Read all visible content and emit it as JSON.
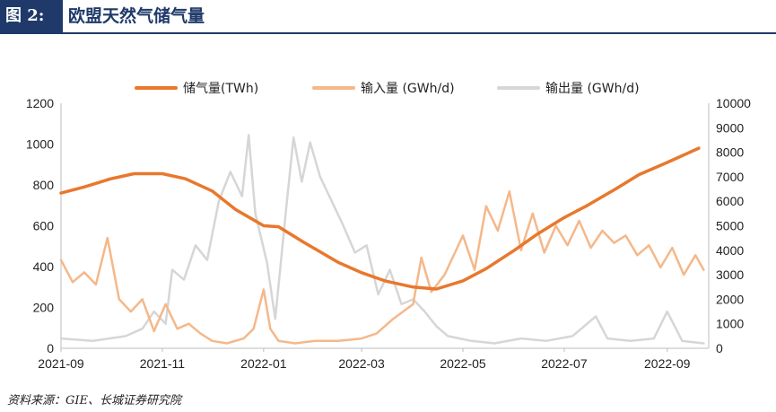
{
  "figure": {
    "label": "图 2:",
    "title": "欧盟天然气储气量",
    "source": "资料来源：GIE、长城证券研究院"
  },
  "colors": {
    "header_bg": "#1f3a6a",
    "storage": "#e8782d",
    "injection": "#f4b88a",
    "withdrawal": "#d6d6d6"
  },
  "chart_data": {
    "type": "line",
    "legend_position": "top",
    "grid": false,
    "x_ticks": [
      "2021-09",
      "2021-11",
      "2022-01",
      "2022-03",
      "2022-05",
      "2022-07",
      "2022-09"
    ],
    "y_left": {
      "ylim": [
        0,
        1200
      ],
      "ticks": [
        0,
        200,
        400,
        600,
        800,
        1000,
        1200
      ]
    },
    "y_right": {
      "ylim": [
        0,
        10000
      ],
      "ticks": [
        0,
        1000,
        2000,
        3000,
        4000,
        5000,
        6000,
        7000,
        8000,
        9000,
        10000
      ]
    },
    "series": [
      {
        "name": "储气量(TWh)",
        "axis": "left",
        "color": "#e8782d",
        "points": [
          [
            "2021-09-01",
            760
          ],
          [
            "2021-09-15",
            790
          ],
          [
            "2021-10-01",
            830
          ],
          [
            "2021-10-15",
            855
          ],
          [
            "2021-11-01",
            855
          ],
          [
            "2021-11-15",
            830
          ],
          [
            "2021-12-01",
            770
          ],
          [
            "2021-12-15",
            680
          ],
          [
            "2022-01-01",
            600
          ],
          [
            "2022-01-10",
            595
          ],
          [
            "2022-01-25",
            520
          ],
          [
            "2022-02-15",
            420
          ],
          [
            "2022-03-01",
            370
          ],
          [
            "2022-03-15",
            330
          ],
          [
            "2022-04-01",
            300
          ],
          [
            "2022-04-15",
            290
          ],
          [
            "2022-05-01",
            330
          ],
          [
            "2022-05-15",
            390
          ],
          [
            "2022-06-01",
            480
          ],
          [
            "2022-06-15",
            560
          ],
          [
            "2022-07-01",
            640
          ],
          [
            "2022-07-15",
            700
          ],
          [
            "2022-08-01",
            780
          ],
          [
            "2022-08-15",
            850
          ],
          [
            "2022-09-01",
            910
          ],
          [
            "2022-09-20",
            980
          ]
        ]
      },
      {
        "name": "输入量 (GWh/d)",
        "axis": "right",
        "color": "#f4b88a",
        "points": [
          [
            "2021-09-01",
            3600
          ],
          [
            "2021-09-08",
            2700
          ],
          [
            "2021-09-15",
            3100
          ],
          [
            "2021-09-22",
            2600
          ],
          [
            "2021-09-29",
            4500
          ],
          [
            "2021-10-06",
            2000
          ],
          [
            "2021-10-13",
            1500
          ],
          [
            "2021-10-20",
            2000
          ],
          [
            "2021-10-27",
            700
          ],
          [
            "2021-11-03",
            1800
          ],
          [
            "2021-11-10",
            800
          ],
          [
            "2021-11-17",
            1000
          ],
          [
            "2021-11-24",
            600
          ],
          [
            "2021-12-01",
            300
          ],
          [
            "2021-12-10",
            200
          ],
          [
            "2021-12-20",
            400
          ],
          [
            "2021-12-26",
            800
          ],
          [
            "2022-01-01",
            2400
          ],
          [
            "2022-01-05",
            800
          ],
          [
            "2022-01-10",
            300
          ],
          [
            "2022-01-20",
            200
          ],
          [
            "2022-02-01",
            300
          ],
          [
            "2022-02-15",
            300
          ],
          [
            "2022-03-01",
            400
          ],
          [
            "2022-03-10",
            600
          ],
          [
            "2022-03-20",
            1200
          ],
          [
            "2022-04-01",
            1800
          ],
          [
            "2022-04-06",
            3700
          ],
          [
            "2022-04-12",
            2300
          ],
          [
            "2022-04-20",
            3000
          ],
          [
            "2022-05-01",
            4600
          ],
          [
            "2022-05-08",
            3200
          ],
          [
            "2022-05-15",
            5800
          ],
          [
            "2022-05-22",
            4800
          ],
          [
            "2022-05-29",
            6400
          ],
          [
            "2022-06-05",
            4000
          ],
          [
            "2022-06-12",
            5500
          ],
          [
            "2022-06-19",
            3900
          ],
          [
            "2022-06-26",
            5000
          ],
          [
            "2022-07-03",
            4200
          ],
          [
            "2022-07-10",
            5200
          ],
          [
            "2022-07-17",
            4100
          ],
          [
            "2022-07-24",
            4800
          ],
          [
            "2022-07-31",
            4300
          ],
          [
            "2022-08-07",
            4600
          ],
          [
            "2022-08-14",
            3800
          ],
          [
            "2022-08-21",
            4200
          ],
          [
            "2022-08-28",
            3300
          ],
          [
            "2022-09-04",
            4100
          ],
          [
            "2022-09-11",
            3000
          ],
          [
            "2022-09-18",
            3800
          ],
          [
            "2022-09-23",
            3200
          ]
        ]
      },
      {
        "name": "输出量 (GWh/d)",
        "axis": "right",
        "color": "#d6d6d6",
        "points": [
          [
            "2021-09-01",
            400
          ],
          [
            "2021-09-20",
            300
          ],
          [
            "2021-10-10",
            500
          ],
          [
            "2021-10-20",
            800
          ],
          [
            "2021-10-27",
            1500
          ],
          [
            "2021-11-03",
            1000
          ],
          [
            "2021-11-07",
            3200
          ],
          [
            "2021-11-14",
            2800
          ],
          [
            "2021-11-21",
            4200
          ],
          [
            "2021-11-28",
            3600
          ],
          [
            "2021-12-05",
            6000
          ],
          [
            "2021-12-12",
            7200
          ],
          [
            "2021-12-19",
            6200
          ],
          [
            "2021-12-23",
            8700
          ],
          [
            "2021-12-27",
            5500
          ],
          [
            "2022-01-03",
            3500
          ],
          [
            "2022-01-08",
            1200
          ],
          [
            "2022-01-15",
            6000
          ],
          [
            "2022-01-19",
            8600
          ],
          [
            "2022-01-24",
            6800
          ],
          [
            "2022-01-29",
            8400
          ],
          [
            "2022-02-04",
            7000
          ],
          [
            "2022-02-11",
            6000
          ],
          [
            "2022-02-18",
            5000
          ],
          [
            "2022-02-25",
            3900
          ],
          [
            "2022-03-04",
            4200
          ],
          [
            "2022-03-11",
            2200
          ],
          [
            "2022-03-18",
            3200
          ],
          [
            "2022-03-25",
            1800
          ],
          [
            "2022-04-01",
            2000
          ],
          [
            "2022-04-08",
            1500
          ],
          [
            "2022-04-15",
            900
          ],
          [
            "2022-04-22",
            500
          ],
          [
            "2022-05-06",
            300
          ],
          [
            "2022-05-20",
            200
          ],
          [
            "2022-06-05",
            400
          ],
          [
            "2022-06-20",
            300
          ],
          [
            "2022-07-06",
            500
          ],
          [
            "2022-07-20",
            1300
          ],
          [
            "2022-07-27",
            400
          ],
          [
            "2022-08-10",
            300
          ],
          [
            "2022-08-24",
            400
          ],
          [
            "2022-09-01",
            1500
          ],
          [
            "2022-09-10",
            300
          ],
          [
            "2022-09-23",
            200
          ]
        ]
      }
    ]
  }
}
